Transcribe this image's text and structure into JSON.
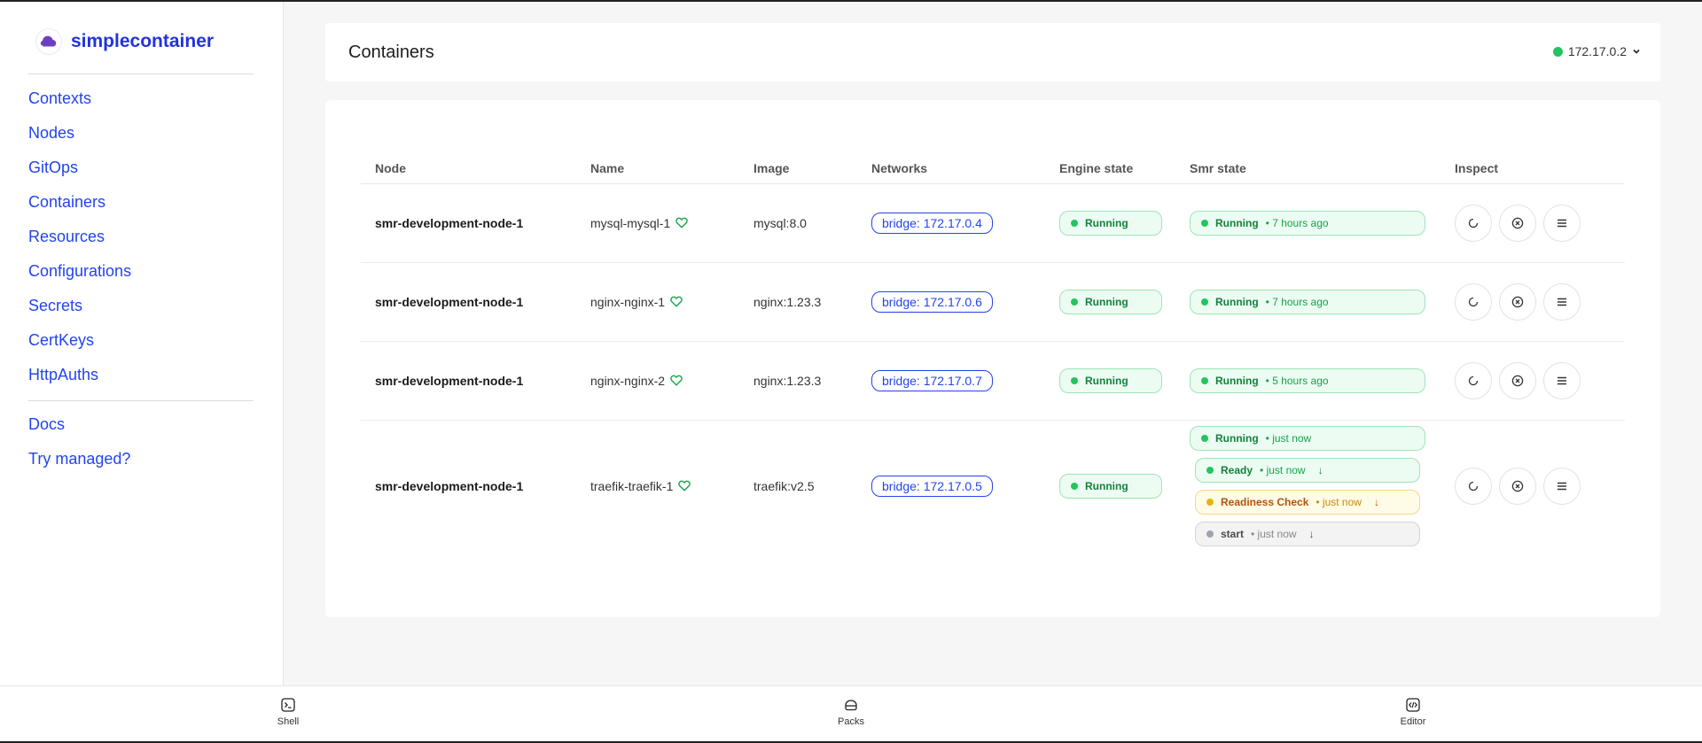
{
  "brand": {
    "name": "simplecontainer",
    "logo_icon": "cloud-logo-icon"
  },
  "sidebar": {
    "items": [
      {
        "label": "Contexts"
      },
      {
        "label": "Nodes"
      },
      {
        "label": "GitOps"
      },
      {
        "label": "Containers"
      },
      {
        "label": "Resources"
      },
      {
        "label": "Configurations"
      },
      {
        "label": "Secrets"
      },
      {
        "label": "CertKeys"
      },
      {
        "label": "HttpAuths"
      }
    ],
    "secondary": [
      {
        "label": "Docs"
      },
      {
        "label": "Try managed?"
      }
    ]
  },
  "header": {
    "title": "Containers",
    "ip": "172.17.0.2",
    "ip_status_color": "#22c55e"
  },
  "table": {
    "columns": [
      "Node",
      "Name",
      "Image",
      "Networks",
      "Engine state",
      "Smr state",
      "Inspect"
    ],
    "rows": [
      {
        "node": "smr-development-node-1",
        "name": "mysql-mysql-1",
        "image": "mysql:8.0",
        "network": "bridge: 172.17.0.4",
        "engine_state": "Running",
        "smr_state": "Running",
        "smr_time": "• 7 hours ago"
      },
      {
        "node": "smr-development-node-1",
        "name": "nginx-nginx-1",
        "image": "nginx:1.23.3",
        "network": "bridge: 172.17.0.6",
        "engine_state": "Running",
        "smr_state": "Running",
        "smr_time": "• 7 hours ago"
      },
      {
        "node": "smr-development-node-1",
        "name": "nginx-nginx-2",
        "image": "nginx:1.23.3",
        "network": "bridge: 172.17.0.7",
        "engine_state": "Running",
        "smr_state": "Running",
        "smr_time": "• 5 hours ago"
      },
      {
        "node": "smr-development-node-1",
        "name": "traefik-traefik-1",
        "image": "traefik:v2.5",
        "network": "bridge: 172.17.0.5",
        "engine_state": "Running",
        "smr_state": "Running",
        "smr_time": "• just now",
        "sub_states": [
          {
            "label": "Ready",
            "time": "• just now",
            "arrow": "↓"
          },
          {
            "label": "Readiness Check",
            "time": "• just now",
            "arrow": "↓"
          },
          {
            "label": "start",
            "time": "• just now",
            "arrow": "↓"
          }
        ]
      }
    ]
  },
  "bottom_bar": {
    "shell": "Shell",
    "packs": "Packs",
    "editor": "Editor"
  },
  "colors": {
    "accent": "#2244ee",
    "running_green": "#22c55e",
    "warning_yellow": "#eab308",
    "neutral_grey": "#9ca3af"
  }
}
